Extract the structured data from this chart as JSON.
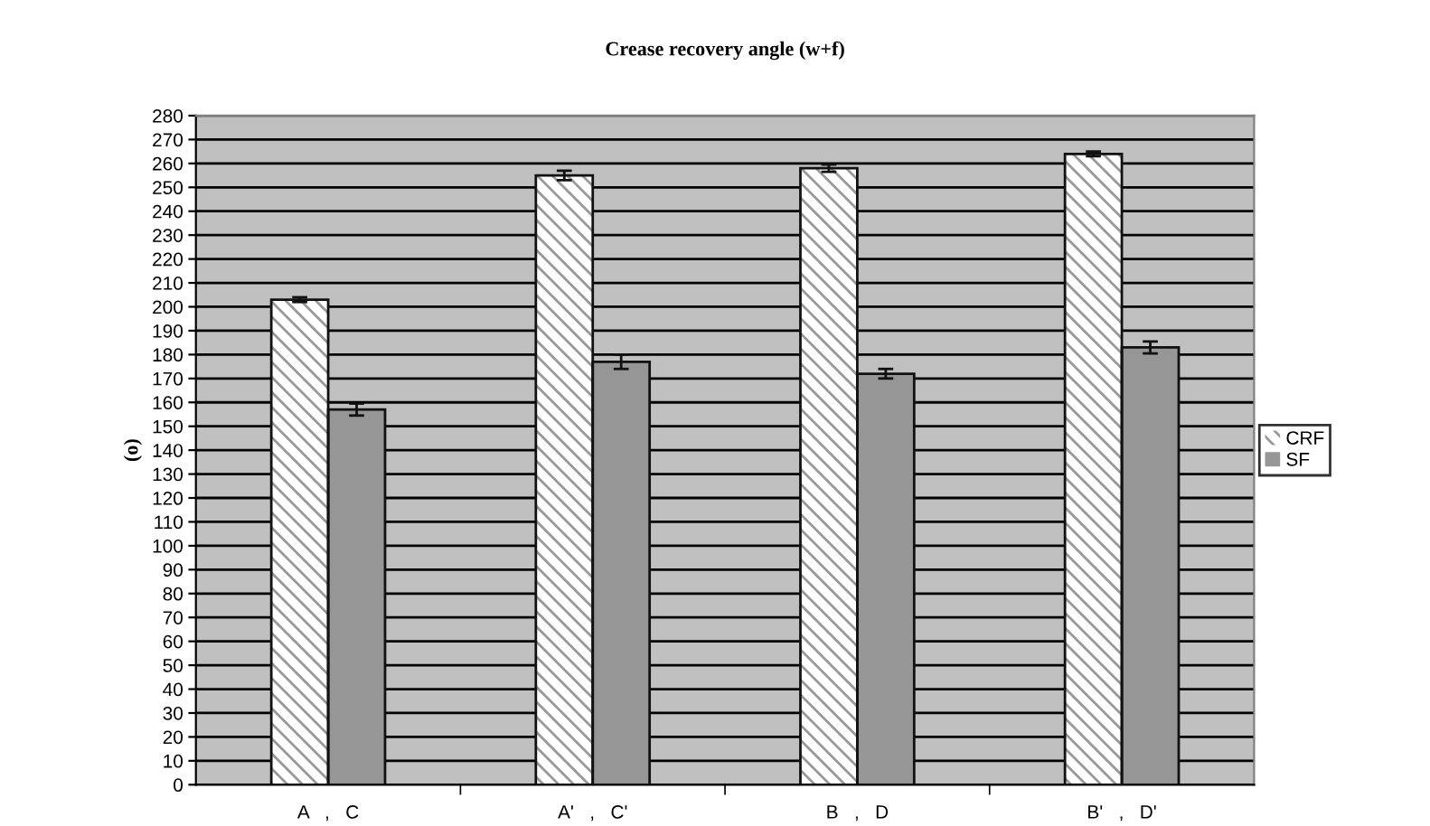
{
  "chart_data": {
    "type": "bar",
    "title": "Crease recovery angle (w+f)",
    "ylabel": "(o)",
    "categories": [
      "A   ,   C",
      "A'   ,   C'",
      "B   ,   D",
      "B'   ,   D'"
    ],
    "series": [
      {
        "name": "CRF",
        "color": "#ffffff",
        "values": [
          203,
          255,
          258,
          264
        ],
        "errors": [
          1,
          2,
          1.5,
          1
        ]
      },
      {
        "name": "SF",
        "color": "#969696",
        "values": [
          157,
          177,
          172,
          183
        ],
        "errors": [
          2.5,
          3,
          2,
          2.5
        ]
      }
    ],
    "ylim": [
      0,
      280
    ],
    "yticks": [
      0,
      10,
      20,
      30,
      40,
      50,
      60,
      70,
      80,
      90,
      100,
      110,
      120,
      130,
      140,
      150,
      160,
      170,
      180,
      190,
      200,
      210,
      220,
      230,
      240,
      250,
      260,
      270,
      280
    ],
    "grid": "y",
    "legend": "right"
  }
}
